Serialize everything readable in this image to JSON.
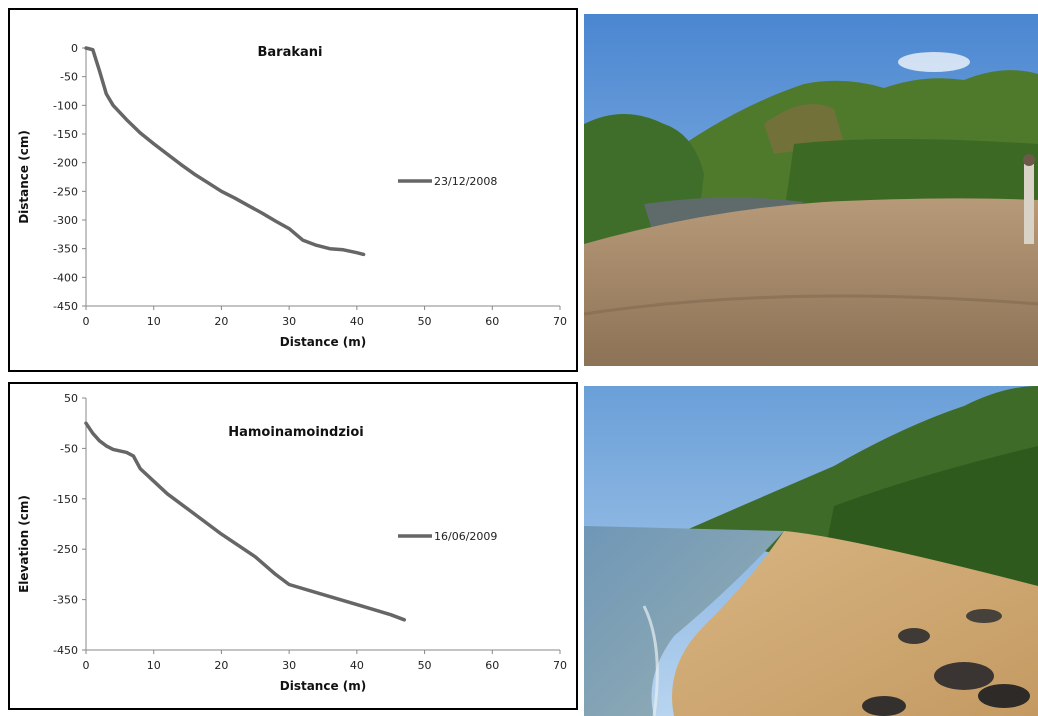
{
  "chart_data": [
    {
      "type": "line",
      "title": "Barakani",
      "xlabel": "Distance (m)",
      "ylabel": "Distance (cm)",
      "xlim": [
        0,
        70
      ],
      "ylim": [
        -450,
        0
      ],
      "xticks": [
        "0",
        "10",
        "20",
        "30",
        "40",
        "50",
        "60",
        "70"
      ],
      "yticks": [
        "0",
        "-50",
        "-100",
        "-150",
        "-200",
        "-250",
        "-300",
        "-350",
        "-400",
        "-450"
      ],
      "grid": false,
      "legend": "right",
      "series": [
        {
          "name": "23/12/2008",
          "x": [
            0,
            1,
            2,
            3,
            4,
            6,
            8,
            10,
            12,
            14,
            16,
            18,
            20,
            22,
            24,
            26,
            28,
            30,
            32,
            34,
            36,
            38,
            40,
            41
          ],
          "y": [
            0,
            -3,
            -40,
            -80,
            -100,
            -125,
            -148,
            -167,
            -185,
            -203,
            -220,
            -235,
            -250,
            -262,
            -275,
            -288,
            -302,
            -315,
            -335,
            -344,
            -350,
            -352,
            -357,
            -360
          ]
        }
      ],
      "line_color": "#666666"
    },
    {
      "type": "line",
      "title": "Hamoinamoindzioi",
      "xlabel": "Distance (m)",
      "ylabel": "Elevation (cm)",
      "xlim": [
        0,
        70
      ],
      "ylim": [
        -450,
        50
      ],
      "xticks": [
        "0",
        "10",
        "20",
        "30",
        "40",
        "50",
        "60",
        "70"
      ],
      "yticks": [
        "50",
        "-50",
        "-150",
        "-250",
        "-350",
        "-450"
      ],
      "grid": false,
      "legend": "right",
      "series": [
        {
          "name": "16/06/2009",
          "x": [
            0,
            1,
            2,
            3,
            4,
            6,
            7,
            8,
            10,
            12,
            15,
            20,
            25,
            28,
            30,
            35,
            40,
            45,
            47
          ],
          "y": [
            0,
            -20,
            -35,
            -45,
            -52,
            -58,
            -65,
            -90,
            -115,
            -140,
            -170,
            -220,
            -265,
            -300,
            -320,
            -340,
            -360,
            -380,
            -390
          ]
        }
      ],
      "line_color": "#666666"
    }
  ]
}
